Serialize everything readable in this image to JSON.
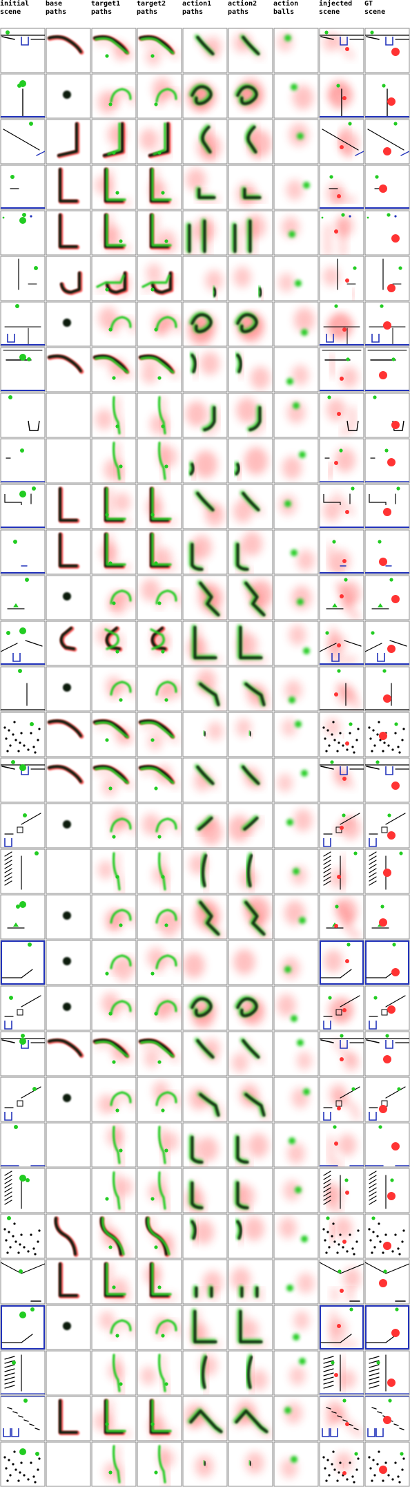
{
  "columns": [
    {
      "id": "initial",
      "label": "initial\nscene"
    },
    {
      "id": "base",
      "label": "base\npaths"
    },
    {
      "id": "target1",
      "label": "target1\npaths"
    },
    {
      "id": "target2",
      "label": "target2\npaths"
    },
    {
      "id": "action1",
      "label": "action1\npaths"
    },
    {
      "id": "action2",
      "label": "action2\npaths"
    },
    {
      "id": "balls",
      "label": "action\nballs"
    },
    {
      "id": "injected",
      "label": "injected\nscene"
    },
    {
      "id": "gt",
      "label": "GT\nscene"
    }
  ],
  "colors": {
    "border": "#888888",
    "cell_bg": "#ffffff",
    "scene_line": "#000000",
    "floor": "#2233bb",
    "container": "#2233bb",
    "green": "#22cc22",
    "red": "#ff3333",
    "path_dark": "#0a1a0a"
  },
  "row_count": 32,
  "rows": [
    {
      "scene": "shelf",
      "path": "hook",
      "action": "small",
      "heat": 0.15
    },
    {
      "scene": "pendulum",
      "path": "dot",
      "action": "swirl",
      "heat": 0.6
    },
    {
      "scene": "diagonal",
      "path": "L-rev",
      "action": "curve",
      "heat": 0.5
    },
    {
      "scene": "ledge",
      "path": "L",
      "action": "small-L",
      "heat": 0.3
    },
    {
      "scene": "empty-dots",
      "path": "L",
      "action": "bars",
      "heat": 0.35
    },
    {
      "scene": "hanging",
      "path": "J",
      "action": "blob",
      "heat": 0.2
    },
    {
      "scene": "cup",
      "path": "dot",
      "action": "swirl",
      "heat": 0.6
    },
    {
      "scene": "bar-ball",
      "path": "hook",
      "action": "drift",
      "heat": 0.3
    },
    {
      "scene": "basket",
      "path": "vertical",
      "action": "fork",
      "heat": 0.4
    },
    {
      "scene": "tee",
      "path": "vertical",
      "action": "scatter",
      "heat": 0.5
    },
    {
      "scene": "bracket",
      "path": "L",
      "action": "small",
      "heat": 0.3
    },
    {
      "scene": "ball-floor",
      "path": "L",
      "action": "drip",
      "heat": 0.35
    },
    {
      "scene": "small-tri",
      "path": "dot",
      "action": "zig",
      "heat": 0.55
    },
    {
      "scene": "cup-ramp",
      "path": "C",
      "action": "big-L",
      "heat": 0.3
    },
    {
      "scene": "pendulum2",
      "path": "dot",
      "action": "hook",
      "heat": 0.3
    },
    {
      "scene": "dots",
      "path": "hook",
      "action": "ball",
      "heat": 0.1
    },
    {
      "scene": "shelf",
      "path": "hook",
      "action": "small",
      "heat": 0.15
    },
    {
      "scene": "ramp-cup",
      "path": "dot",
      "action": "smear",
      "heat": 0.45
    },
    {
      "scene": "hatch",
      "path": "vertical",
      "action": "arc",
      "heat": 0.2
    },
    {
      "scene": "small-tri",
      "path": "dot",
      "action": "zig",
      "heat": 0.6
    },
    {
      "scene": "box",
      "path": "dot",
      "action": "drop",
      "heat": 0.4
    },
    {
      "scene": "ramp-cup",
      "path": "dot",
      "action": "swirl",
      "heat": 0.45
    },
    {
      "scene": "shelf",
      "path": "hook",
      "action": "small",
      "heat": 0.15
    },
    {
      "scene": "ramp-cup",
      "path": "dot",
      "action": "hook",
      "heat": 0.3
    },
    {
      "scene": "dot-floor",
      "path": "vertical",
      "action": "drip",
      "heat": 0.35
    },
    {
      "scene": "hatch",
      "path": "vertical",
      "action": "drip",
      "heat": 0.3
    },
    {
      "scene": "dots",
      "path": "S",
      "action": "drift",
      "heat": 0.35
    },
    {
      "scene": "vee",
      "path": "L",
      "action": "pair",
      "heat": 0.3
    },
    {
      "scene": "box",
      "path": "dot",
      "action": "big-L",
      "heat": 0.2
    },
    {
      "scene": "hatch2",
      "path": "vertical",
      "action": "arc",
      "heat": 0.2
    },
    {
      "scene": "stairs",
      "path": "L",
      "action": "diag",
      "heat": 0.35
    },
    {
      "scene": "dots",
      "path": "vertical",
      "action": "ball",
      "heat": 0.25
    }
  ]
}
